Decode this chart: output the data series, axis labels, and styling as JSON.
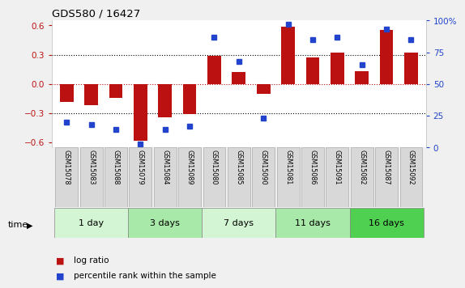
{
  "title": "GDS580 / 16427",
  "samples": [
    "GSM15078",
    "GSM15083",
    "GSM15088",
    "GSM15079",
    "GSM15084",
    "GSM15089",
    "GSM15080",
    "GSM15085",
    "GSM15090",
    "GSM15081",
    "GSM15086",
    "GSM15091",
    "GSM15082",
    "GSM15087",
    "GSM15092"
  ],
  "log_ratio": [
    -0.18,
    -0.22,
    -0.14,
    -0.58,
    -0.34,
    -0.31,
    0.29,
    0.12,
    -0.1,
    0.59,
    0.27,
    0.32,
    0.13,
    0.55,
    0.32
  ],
  "percentile_rank": [
    20,
    18,
    14,
    3,
    14,
    17,
    87,
    68,
    23,
    97,
    85,
    87,
    65,
    93,
    85
  ],
  "groups": [
    {
      "label": "1 day",
      "start": 0,
      "end": 3,
      "color": "#d4f5d4"
    },
    {
      "label": "3 days",
      "start": 3,
      "end": 6,
      "color": "#a8e8a8"
    },
    {
      "label": "7 days",
      "start": 6,
      "end": 9,
      "color": "#d4f5d4"
    },
    {
      "label": "11 days",
      "start": 9,
      "end": 12,
      "color": "#a8e8a8"
    },
    {
      "label": "16 days",
      "start": 12,
      "end": 15,
      "color": "#50d050"
    }
  ],
  "bar_color": "#bb1111",
  "dot_color": "#2244cc",
  "ylim_left": [
    -0.65,
    0.65
  ],
  "ylim_right": [
    0,
    100
  ],
  "yticks_left": [
    -0.6,
    -0.3,
    0.0,
    0.3,
    0.6
  ],
  "yticks_right": [
    0,
    25,
    50,
    75,
    100
  ],
  "ytick_labels_right": [
    "0",
    "25",
    "50",
    "75",
    "100%"
  ],
  "bg_color": "#f0f0f0",
  "plot_bg_color": "#ffffff",
  "sample_box_color": "#d8d8d8",
  "sample_box_edge": "#aaaaaa"
}
